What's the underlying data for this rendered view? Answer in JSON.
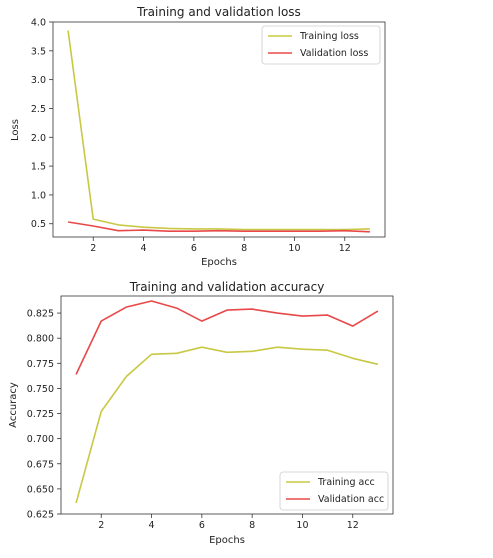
{
  "chart_data": [
    {
      "type": "line",
      "title": "Training and validation loss",
      "xlabel": "Epochs",
      "ylabel": "Loss",
      "xlim": [
        0.4,
        13.6
      ],
      "ylim": [
        0.27,
        4.0
      ],
      "xticks": [
        2,
        4,
        6,
        8,
        10,
        12
      ],
      "yticks": [
        0.5,
        1.0,
        1.5,
        2.0,
        2.5,
        3.0,
        3.5,
        4.0
      ],
      "ytick_labels": [
        "0.5",
        "1.0",
        "1.5",
        "2.0",
        "2.5",
        "3.0",
        "3.5",
        "4.0"
      ],
      "grid": false,
      "legend": "top-right",
      "x": [
        1,
        2,
        3,
        4,
        5,
        6,
        7,
        8,
        9,
        10,
        11,
        12,
        13
      ],
      "series": [
        {
          "name": "Training loss",
          "color": "#c8c844",
          "values": [
            3.85,
            0.58,
            0.48,
            0.44,
            0.42,
            0.41,
            0.41,
            0.4,
            0.4,
            0.4,
            0.4,
            0.4,
            0.41
          ]
        },
        {
          "name": "Validation loss",
          "color": "#e84848",
          "values": [
            0.53,
            0.46,
            0.38,
            0.39,
            0.37,
            0.37,
            0.38,
            0.37,
            0.37,
            0.37,
            0.37,
            0.38,
            0.36
          ]
        }
      ]
    },
    {
      "type": "line",
      "title": "Training and validation accuracy",
      "xlabel": "Epochs",
      "ylabel": "Accuracy",
      "xlim": [
        0.4,
        13.6
      ],
      "ylim": [
        0.625,
        0.842
      ],
      "xticks": [
        2,
        4,
        6,
        8,
        10,
        12
      ],
      "yticks": [
        0.625,
        0.65,
        0.675,
        0.7,
        0.725,
        0.75,
        0.775,
        0.8,
        0.825
      ],
      "ytick_labels": [
        "0.625",
        "0.650",
        "0.675",
        "0.700",
        "0.725",
        "0.750",
        "0.775",
        "0.800",
        "0.825"
      ],
      "grid": false,
      "legend": "bottom-right",
      "x": [
        1,
        2,
        3,
        4,
        5,
        6,
        7,
        8,
        9,
        10,
        11,
        12,
        13
      ],
      "series": [
        {
          "name": "Training acc",
          "color": "#c8c844",
          "values": [
            0.636,
            0.727,
            0.762,
            0.784,
            0.785,
            0.791,
            0.786,
            0.787,
            0.791,
            0.789,
            0.788,
            0.78,
            0.774
          ]
        },
        {
          "name": "Validation acc",
          "color": "#e84848",
          "values": [
            0.764,
            0.817,
            0.831,
            0.837,
            0.83,
            0.817,
            0.828,
            0.829,
            0.825,
            0.822,
            0.823,
            0.812,
            0.827
          ]
        }
      ]
    }
  ]
}
